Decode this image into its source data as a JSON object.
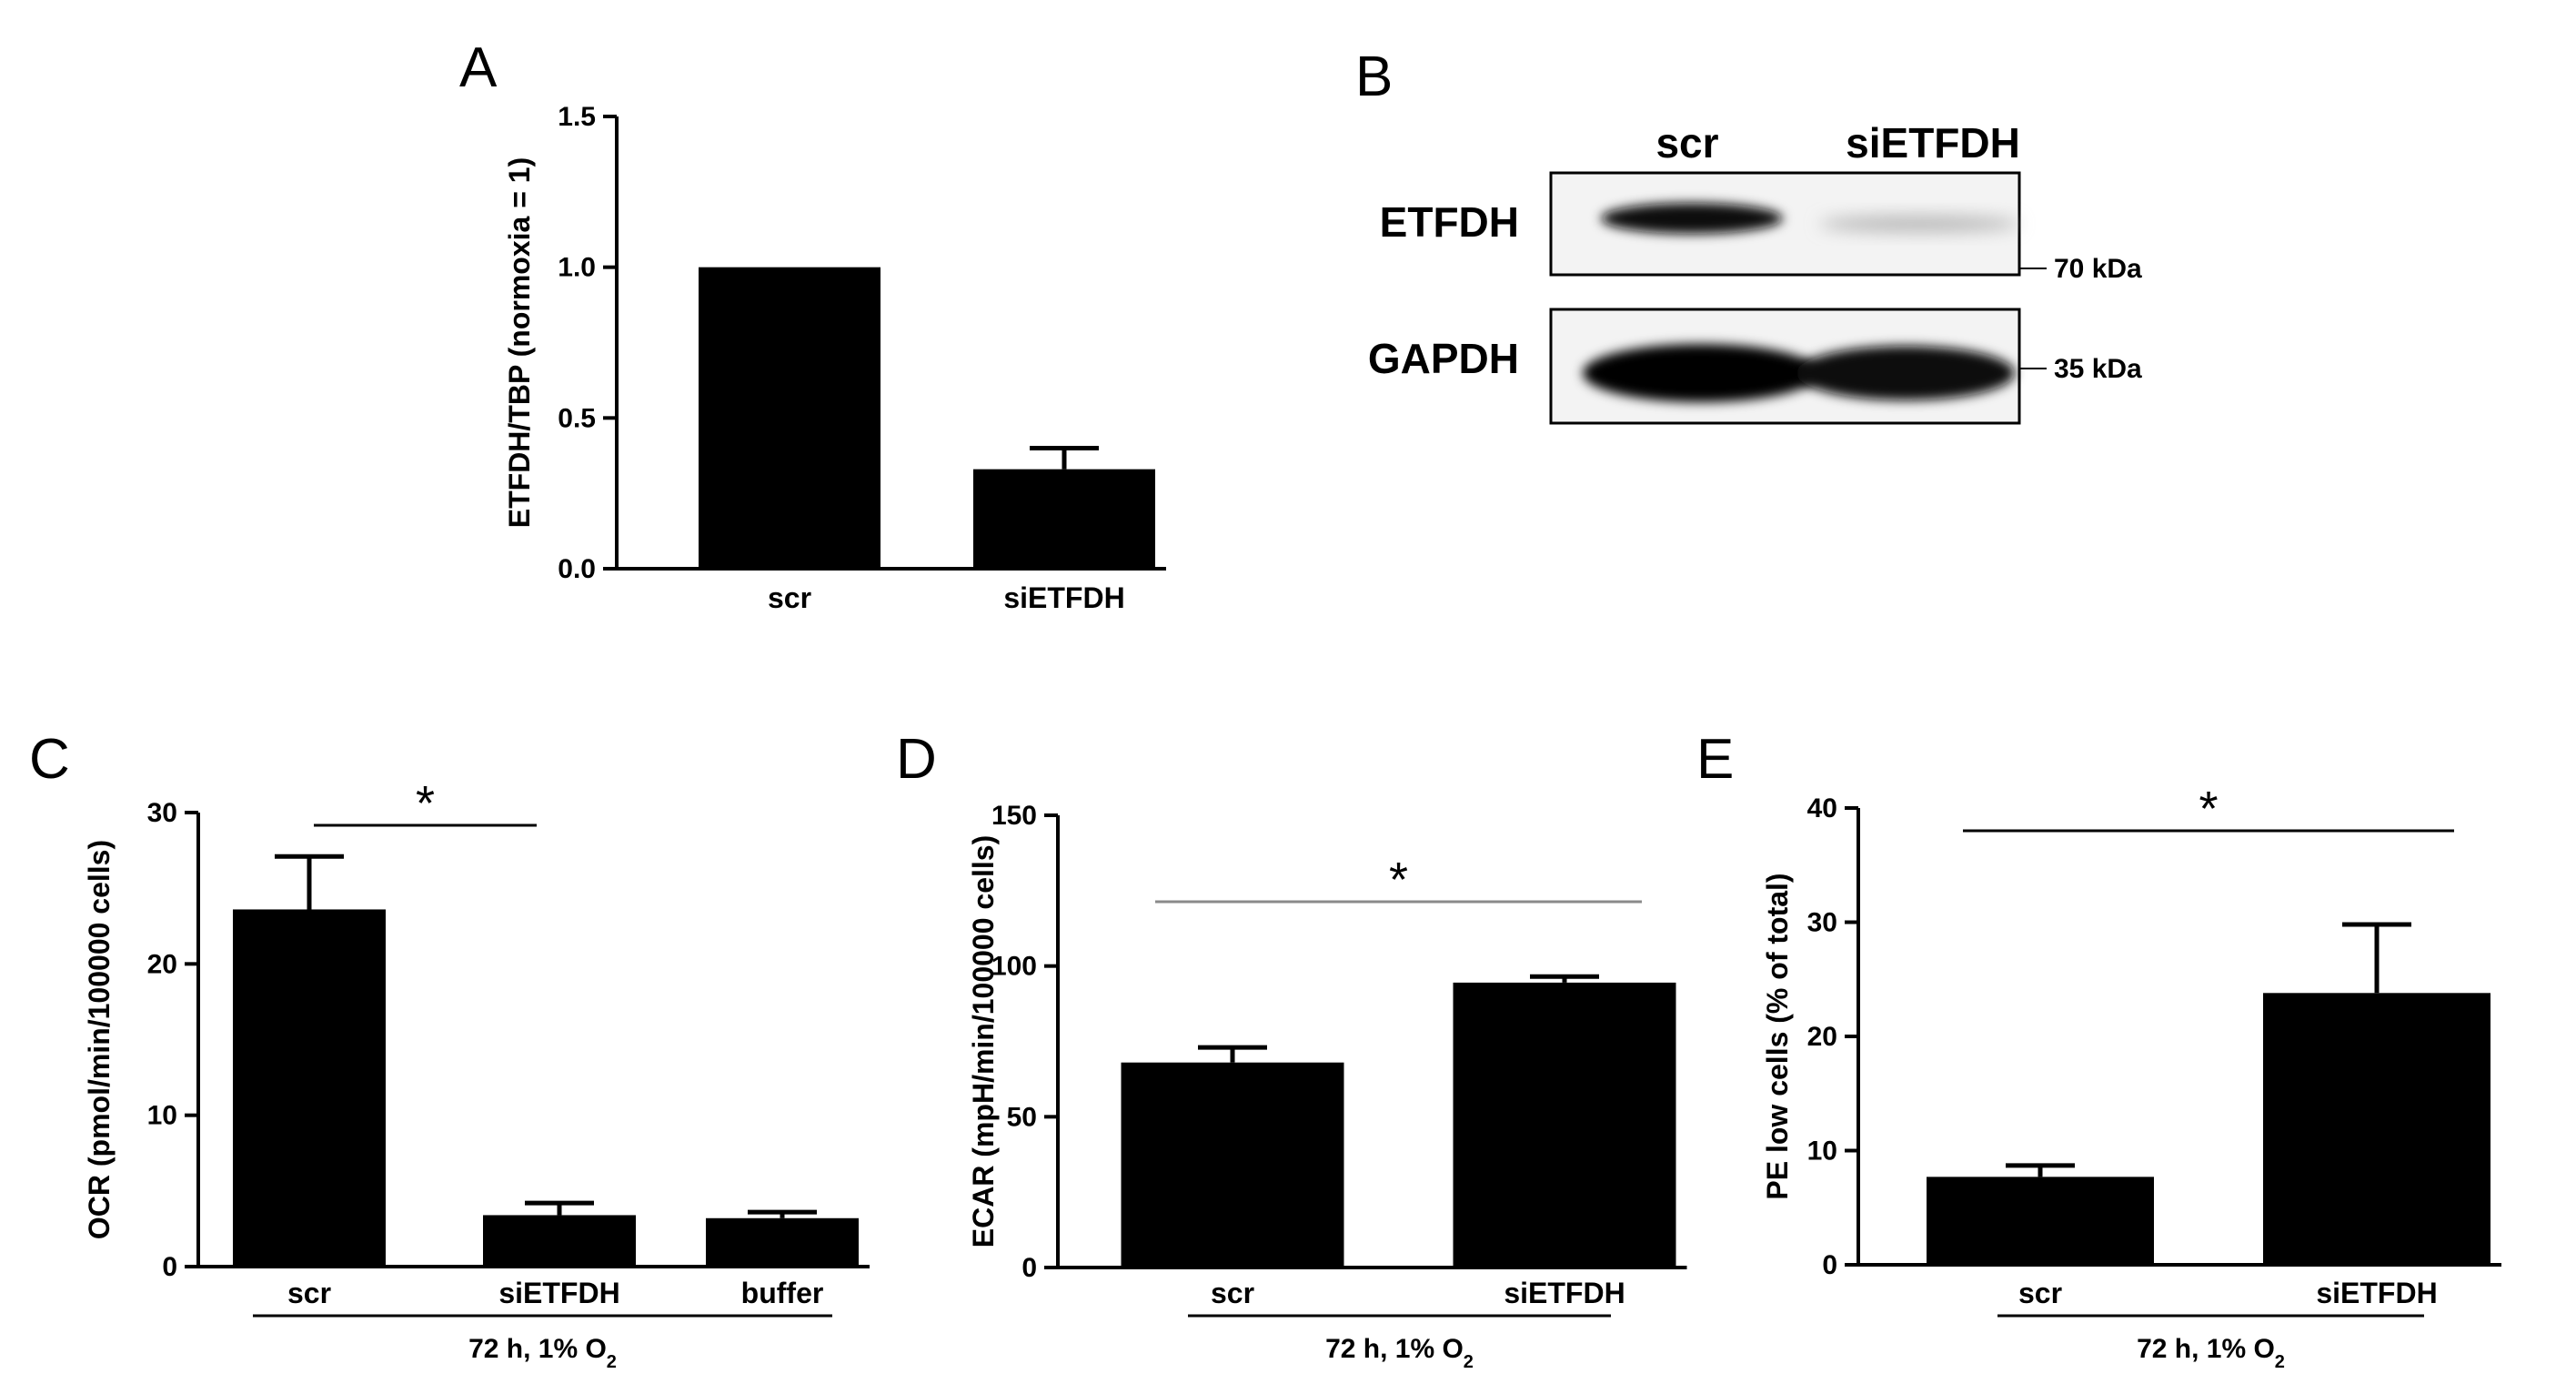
{
  "chart_data": [
    {
      "panel": "A",
      "type": "bar",
      "ylabel": "ETFDH/TBP (normoxia = 1)",
      "ylim": [
        0,
        1.5
      ],
      "yticks": [
        "0.0",
        "0.5",
        "1.0",
        "1.5"
      ],
      "ytick_values": [
        0,
        0.5,
        1.0,
        1.5
      ],
      "categories": [
        "scr",
        "siETFDH"
      ],
      "values": [
        1.0,
        0.33
      ],
      "errors": [
        0,
        0.07
      ],
      "bar_color": "#000000"
    },
    {
      "panel": "C",
      "type": "bar",
      "ylabel": "OCR (pmol/min/100000 cells)",
      "ylim": [
        0,
        30
      ],
      "yticks": [
        "0",
        "10",
        "20",
        "30"
      ],
      "ytick_values": [
        0,
        10,
        20,
        30
      ],
      "categories": [
        "scr",
        "siETFDH",
        "buffer"
      ],
      "values": [
        23.6,
        3.4,
        3.2
      ],
      "errors": [
        3.5,
        0.8,
        0.4
      ],
      "condition": {
        "prefix": "72 h, 1% O",
        "sub": "2",
        "span": [
          0,
          2
        ]
      },
      "significance": {
        "label": "*",
        "from": 0,
        "to": 1
      },
      "bar_color": "#000000"
    },
    {
      "panel": "D",
      "type": "bar",
      "ylabel": "ECAR (mpH/min/100000 cells)",
      "ylim": [
        0,
        150
      ],
      "yticks": [
        "0",
        "50",
        "100",
        "150"
      ],
      "ytick_values": [
        0,
        50,
        100,
        150
      ],
      "categories": [
        "scr",
        "siETFDH"
      ],
      "values": [
        68,
        94.5
      ],
      "errors": [
        5,
        2
      ],
      "condition": {
        "prefix": "72 h, 1% O",
        "sub": "2",
        "span": [
          0,
          1
        ]
      },
      "significance": {
        "label": "*",
        "from": 0,
        "to": 1
      },
      "bar_color": "#000000"
    },
    {
      "panel": "E",
      "type": "bar",
      "ylabel": "PE low cells (% of total)",
      "ylim": [
        0,
        40
      ],
      "yticks": [
        "0",
        "10",
        "20",
        "30",
        "40"
      ],
      "ytick_values": [
        0,
        10,
        20,
        30,
        40
      ],
      "categories": [
        "scr",
        "siETFDH"
      ],
      "values": [
        7.7,
        23.8
      ],
      "errors": [
        1.0,
        6.0
      ],
      "condition": {
        "prefix": "72 h, 1% O",
        "sub": "2",
        "span": [
          0,
          1
        ]
      },
      "significance": {
        "label": "*",
        "from": 0,
        "to": 1
      },
      "bar_color": "#000000"
    }
  ],
  "blot": {
    "panel": "B",
    "lanes": [
      "scr",
      "siETFDH"
    ],
    "rows": [
      {
        "label": "ETFDH",
        "marker": "70 kDa"
      },
      {
        "label": "GAPDH",
        "marker": "35 kDa"
      }
    ]
  }
}
